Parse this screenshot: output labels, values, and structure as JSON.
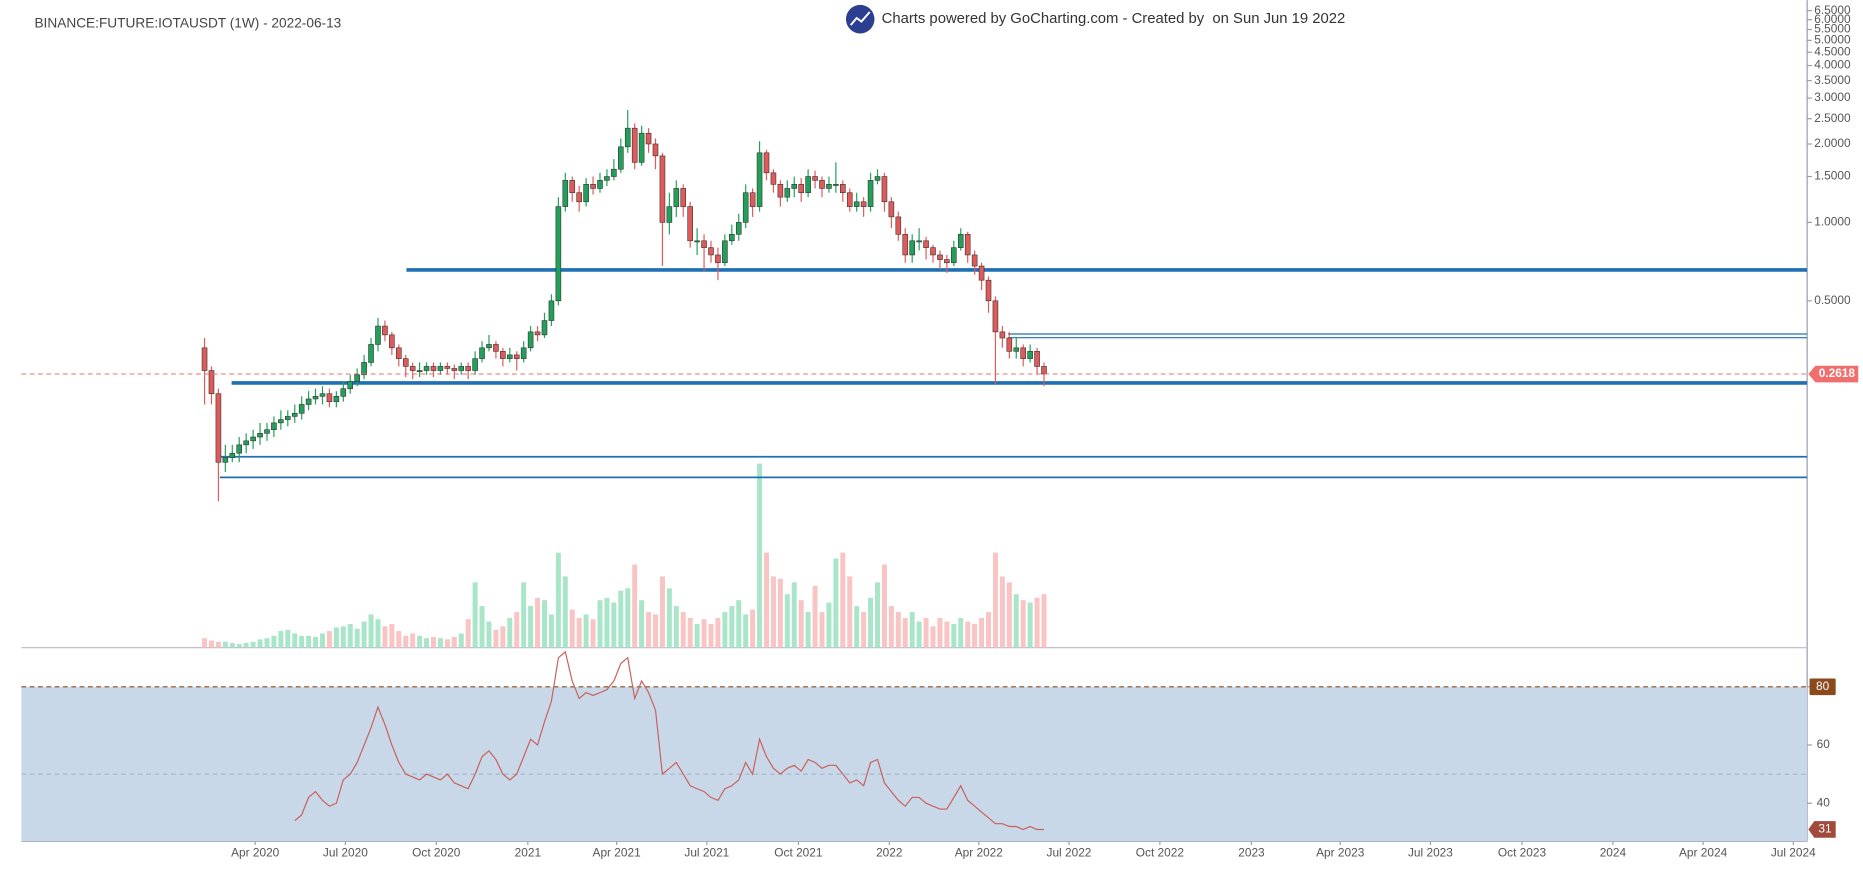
{
  "chart_data": {
    "type": "candlestick",
    "title": "BINANCE:FUTURE:IOTAUSDT (1W) - 2022-06-13",
    "subtitle": "Charts powered by GoCharting.com - Created by  on Sun Jun 19 2022",
    "log_scale": true,
    "up_color": "#22a05a",
    "down_color": "#e05a5a",
    "volume_up_color": "#a9e5c8",
    "volume_down_color": "#f8c4c4",
    "line_color": "#1f6fb4",
    "open": [
      0.33,
      0.27,
      0.22,
      0.12,
      0.125,
      0.13,
      0.14,
      0.145,
      0.15,
      0.155,
      0.16,
      0.17,
      0.175,
      0.18,
      0.185,
      0.2,
      0.21,
      0.215,
      0.22,
      0.205,
      0.215,
      0.23,
      0.245,
      0.26,
      0.29,
      0.34,
      0.4,
      0.37,
      0.33,
      0.3,
      0.28,
      0.27,
      0.27,
      0.28,
      0.27,
      0.28,
      0.275,
      0.27,
      0.28,
      0.27,
      0.3,
      0.33,
      0.34,
      0.32,
      0.3,
      0.31,
      0.3,
      0.33,
      0.38,
      0.37,
      0.42,
      0.5,
      1.15,
      1.45,
      1.3,
      1.2,
      1.4,
      1.35,
      1.45,
      1.5,
      1.6,
      1.95,
      2.3,
      1.7,
      2.2,
      2.0,
      1.8,
      1.0,
      1.15,
      1.35,
      1.15,
      0.85,
      0.85,
      0.8,
      0.75,
      0.7,
      0.85,
      0.9,
      1.0,
      1.3,
      1.15,
      1.85,
      1.55,
      1.4,
      1.25,
      1.35,
      1.4,
      1.3,
      1.5,
      1.45,
      1.35,
      1.4,
      1.4,
      1.3,
      1.15,
      1.2,
      1.15,
      1.45,
      1.5,
      1.2,
      1.05,
      0.9,
      0.75,
      0.85,
      0.85,
      0.8,
      0.75,
      0.72,
      0.7,
      0.8,
      0.9,
      0.75,
      0.68,
      0.6,
      0.5,
      0.38,
      0.36,
      0.32,
      0.33,
      0.3,
      0.32,
      0.28
    ],
    "close": [
      0.27,
      0.22,
      0.12,
      0.125,
      0.13,
      0.14,
      0.145,
      0.15,
      0.155,
      0.16,
      0.17,
      0.175,
      0.18,
      0.185,
      0.2,
      0.21,
      0.215,
      0.22,
      0.205,
      0.215,
      0.23,
      0.245,
      0.26,
      0.29,
      0.34,
      0.4,
      0.37,
      0.33,
      0.3,
      0.28,
      0.27,
      0.27,
      0.28,
      0.27,
      0.28,
      0.275,
      0.27,
      0.28,
      0.27,
      0.3,
      0.33,
      0.34,
      0.32,
      0.3,
      0.31,
      0.3,
      0.33,
      0.38,
      0.37,
      0.42,
      0.5,
      1.15,
      1.45,
      1.3,
      1.2,
      1.4,
      1.35,
      1.45,
      1.5,
      1.6,
      1.95,
      2.3,
      1.7,
      2.2,
      2.0,
      1.8,
      1.0,
      1.15,
      1.35,
      1.15,
      0.85,
      0.85,
      0.8,
      0.75,
      0.7,
      0.85,
      0.9,
      1.0,
      1.3,
      1.15,
      1.85,
      1.55,
      1.4,
      1.25,
      1.35,
      1.4,
      1.3,
      1.5,
      1.45,
      1.35,
      1.4,
      1.4,
      1.3,
      1.15,
      1.2,
      1.15,
      1.45,
      1.5,
      1.2,
      1.05,
      0.9,
      0.75,
      0.85,
      0.85,
      0.8,
      0.75,
      0.72,
      0.7,
      0.8,
      0.9,
      0.75,
      0.68,
      0.6,
      0.5,
      0.38,
      0.36,
      0.32,
      0.33,
      0.3,
      0.32,
      0.28,
      0.2618
    ],
    "high": [
      0.36,
      0.28,
      0.23,
      0.14,
      0.14,
      0.15,
      0.155,
      0.16,
      0.17,
      0.17,
      0.18,
      0.19,
      0.19,
      0.2,
      0.215,
      0.225,
      0.23,
      0.235,
      0.23,
      0.225,
      0.245,
      0.26,
      0.275,
      0.31,
      0.36,
      0.43,
      0.42,
      0.38,
      0.34,
      0.31,
      0.29,
      0.29,
      0.29,
      0.29,
      0.29,
      0.29,
      0.285,
      0.29,
      0.29,
      0.32,
      0.35,
      0.37,
      0.35,
      0.33,
      0.33,
      0.32,
      0.35,
      0.4,
      0.4,
      0.45,
      0.53,
      1.25,
      1.55,
      1.5,
      1.38,
      1.48,
      1.5,
      1.55,
      1.6,
      1.75,
      2.1,
      2.7,
      2.4,
      2.35,
      2.3,
      2.1,
      1.85,
      1.3,
      1.45,
      1.4,
      1.2,
      0.95,
      0.9,
      0.85,
      0.8,
      0.9,
      0.98,
      1.08,
      1.4,
      1.35,
      2.05,
      1.9,
      1.6,
      1.45,
      1.45,
      1.5,
      1.48,
      1.6,
      1.58,
      1.5,
      1.5,
      1.7,
      1.45,
      1.35,
      1.3,
      1.25,
      1.55,
      1.6,
      1.55,
      1.25,
      1.1,
      0.95,
      0.9,
      0.95,
      0.88,
      0.82,
      0.78,
      0.75,
      0.85,
      0.95,
      0.92,
      0.78,
      0.7,
      0.62,
      0.52,
      0.4,
      0.38,
      0.36,
      0.34,
      0.34,
      0.33,
      0.29
    ],
    "low": [
      0.2,
      0.2,
      0.085,
      0.11,
      0.12,
      0.12,
      0.13,
      0.135,
      0.14,
      0.145,
      0.15,
      0.16,
      0.165,
      0.17,
      0.175,
      0.19,
      0.2,
      0.2,
      0.195,
      0.195,
      0.205,
      0.22,
      0.235,
      0.25,
      0.28,
      0.32,
      0.35,
      0.31,
      0.28,
      0.255,
      0.25,
      0.255,
      0.26,
      0.255,
      0.26,
      0.26,
      0.25,
      0.26,
      0.25,
      0.26,
      0.29,
      0.32,
      0.3,
      0.28,
      0.29,
      0.27,
      0.29,
      0.32,
      0.35,
      0.36,
      0.4,
      0.48,
      1.1,
      1.2,
      1.1,
      1.15,
      1.28,
      1.3,
      1.38,
      1.45,
      1.55,
      1.85,
      1.6,
      1.65,
      1.85,
      1.6,
      0.68,
      0.9,
      1.05,
      1.05,
      0.8,
      0.75,
      0.65,
      0.7,
      0.6,
      0.68,
      0.82,
      0.85,
      0.95,
      1.05,
      1.1,
      1.45,
      1.3,
      1.15,
      1.2,
      1.25,
      1.2,
      1.25,
      1.35,
      1.25,
      1.3,
      1.3,
      1.2,
      1.1,
      1.1,
      1.05,
      1.1,
      1.4,
      1.1,
      0.95,
      0.85,
      0.7,
      0.7,
      0.78,
      0.72,
      0.7,
      0.66,
      0.64,
      0.68,
      0.78,
      0.7,
      0.63,
      0.55,
      0.45,
      0.24,
      0.33,
      0.3,
      0.3,
      0.28,
      0.29,
      0.26,
      0.235
    ],
    "volume": [
      8,
      6,
      5,
      5,
      4,
      3,
      4,
      5,
      7,
      8,
      10,
      14,
      15,
      12,
      10,
      10,
      9,
      12,
      14,
      17,
      18,
      20,
      16,
      22,
      28,
      24,
      18,
      20,
      14,
      10,
      12,
      10,
      8,
      9,
      8,
      7,
      9,
      12,
      24,
      55,
      35,
      22,
      15,
      18,
      25,
      30,
      55,
      35,
      42,
      40,
      28,
      80,
      60,
      32,
      25,
      28,
      24,
      40,
      42,
      38,
      48,
      50,
      70,
      40,
      30,
      28,
      60,
      50,
      35,
      30,
      25,
      20,
      24,
      20,
      25,
      30,
      35,
      40,
      28,
      32,
      155,
      80,
      60,
      58,
      45,
      55,
      40,
      30,
      52,
      30,
      38,
      75,
      80,
      60,
      35,
      30,
      42,
      55,
      70,
      35,
      30,
      25,
      30,
      22,
      25,
      18,
      25,
      22,
      20,
      25,
      22,
      20,
      25,
      30,
      80,
      60,
      55,
      45,
      40,
      38,
      42,
      45
    ],
    "volume_ylim": [
      0,
      160
    ],
    "ylim": [
      0.0233,
      7.13
    ],
    "yticks": [
      {
        "value": 6.5,
        "label": "6.5000"
      },
      {
        "value": 6,
        "label": "6.0000"
      },
      {
        "value": 5.5,
        "label": "5.5000"
      },
      {
        "value": 5,
        "label": "5.0000"
      },
      {
        "value": 4.5,
        "label": "4.5000"
      },
      {
        "value": 4,
        "label": "4.0000"
      },
      {
        "value": 3.5,
        "label": "3.5000"
      },
      {
        "value": 3,
        "label": "3.0000"
      },
      {
        "value": 2.5,
        "label": "2.5000"
      },
      {
        "value": 2,
        "label": "2.0000"
      },
      {
        "value": 1.5,
        "label": "1.5000"
      },
      {
        "value": 1,
        "label": "1.0000"
      },
      {
        "value": 0.5,
        "label": "0.5000"
      }
    ],
    "xlim": [
      -26.4,
      231
    ],
    "xticks": [
      {
        "value": 7.3,
        "label": "Apr 2020"
      },
      {
        "value": 20.3,
        "label": "Jul 2020"
      },
      {
        "value": 33.4,
        "label": "Oct 2020"
      },
      {
        "value": 46.6,
        "label": "2021"
      },
      {
        "value": 59.4,
        "label": "Apr 2021"
      },
      {
        "value": 72.4,
        "label": "Jul 2021"
      },
      {
        "value": 85.6,
        "label": "Oct 2021"
      },
      {
        "value": 98.7,
        "label": "2022"
      },
      {
        "value": 111.6,
        "label": "Apr 2022"
      },
      {
        "value": 124.6,
        "label": "Jul 2022"
      },
      {
        "value": 137.7,
        "label": "Oct 2022"
      },
      {
        "value": 150.9,
        "label": "2023"
      },
      {
        "value": 163.7,
        "label": "Apr 2023"
      },
      {
        "value": 176.7,
        "label": "Jul 2023"
      },
      {
        "value": 189.9,
        "label": "Oct 2023"
      },
      {
        "value": 203,
        "label": "2024"
      },
      {
        "value": 216,
        "label": "Apr 2024"
      },
      {
        "value": 229,
        "label": "Jul 2024"
      }
    ],
    "hlines": [
      {
        "value": 0.657,
        "x_start": 29.1
      },
      {
        "value": 0.242,
        "x_start": 3.9
      },
      {
        "value": 0.126,
        "x_start": 2.2
      },
      {
        "value": 0.105,
        "x_start": 2.2
      },
      {
        "value": 0.373,
        "x_start": 115.8
      },
      {
        "value": 0.361,
        "x_start": 115.8
      }
    ],
    "rsi": {
      "color": "#c9605a",
      "fill": "#c8d8e8",
      "ylim": [
        26.9,
        92.2
      ],
      "yticks": [
        40,
        60,
        80
      ],
      "band": [
        20,
        80
      ],
      "midline": 50,
      "values": [
        null,
        null,
        null,
        null,
        null,
        null,
        null,
        null,
        null,
        null,
        null,
        null,
        null,
        34,
        36,
        42,
        44,
        41,
        39,
        40,
        48,
        50,
        54,
        60,
        66,
        73,
        67,
        60,
        54,
        50,
        49,
        48,
        50,
        49,
        48,
        50,
        47,
        46,
        45,
        50,
        56,
        58,
        55,
        50,
        48,
        50,
        56,
        62,
        60,
        68,
        75,
        90,
        92,
        82,
        76,
        78,
        77,
        78,
        79,
        82,
        88,
        90,
        76,
        82,
        78,
        72,
        50,
        52,
        54,
        50,
        46,
        45,
        44,
        42,
        41,
        45,
        46,
        48,
        54,
        50,
        62,
        56,
        52,
        50,
        52,
        53,
        51,
        55,
        54,
        52,
        53,
        53,
        50,
        47,
        48,
        46,
        54,
        55,
        47,
        44,
        41,
        39,
        42,
        42,
        40,
        39,
        38,
        38,
        42,
        46,
        41,
        39,
        37,
        35,
        33,
        33,
        32,
        32,
        31,
        32,
        31,
        31
      ]
    }
  }
}
